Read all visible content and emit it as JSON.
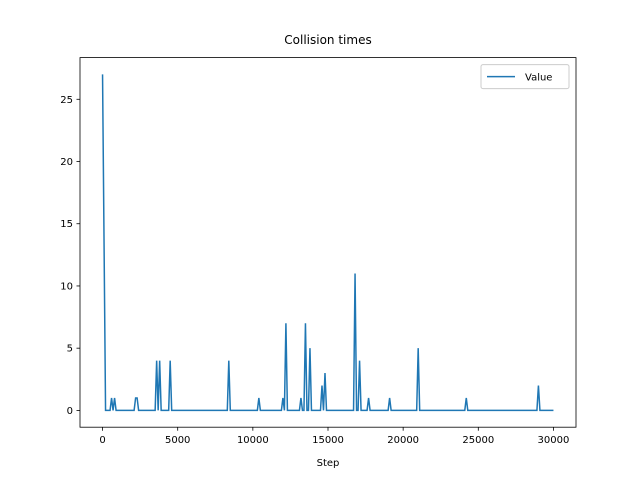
{
  "chart_data": {
    "type": "line",
    "title": "Collision times",
    "x_label": "Step",
    "x": [
      0,
      200,
      500,
      600,
      700,
      800,
      900,
      2100,
      2200,
      2300,
      2400,
      3500,
      3600,
      3700,
      3800,
      3900,
      4400,
      4500,
      4600,
      8300,
      8400,
      8500,
      10300,
      10400,
      10500,
      11900,
      12000,
      12100,
      12200,
      12300,
      13100,
      13200,
      13300,
      13400,
      13500,
      13600,
      13700,
      13800,
      13900,
      14500,
      14600,
      14700,
      14800,
      14900,
      16700,
      16800,
      16900,
      17000,
      17100,
      17200,
      17600,
      17700,
      17800,
      19000,
      19100,
      19200,
      20900,
      21000,
      21100,
      24100,
      24200,
      24300,
      28900,
      29000,
      29100,
      30000
    ],
    "series": [
      {
        "name": "Value",
        "color": "#1f77b4",
        "values": [
          27,
          0,
          0,
          1,
          0,
          1,
          0,
          0,
          1,
          1,
          0,
          0,
          4,
          0,
          4,
          0,
          0,
          4,
          0,
          0,
          4,
          0,
          0,
          1,
          0,
          0,
          1,
          0,
          7,
          0,
          0,
          1,
          0,
          0,
          7,
          0,
          0,
          5,
          0,
          0,
          2,
          0,
          3,
          0,
          0,
          11,
          0,
          0,
          4,
          0,
          0,
          1,
          0,
          0,
          1,
          0,
          0,
          5,
          0,
          0,
          1,
          0,
          0,
          2,
          0,
          0
        ]
      }
    ],
    "xlim": [
      -1500,
      31500
    ],
    "ylim": [
      -1.35,
      28.35
    ],
    "xticks": [
      0,
      5000,
      10000,
      15000,
      20000,
      25000,
      30000
    ],
    "yticks": [
      0,
      5,
      10,
      15,
      20,
      25
    ],
    "legend": "upper right"
  }
}
